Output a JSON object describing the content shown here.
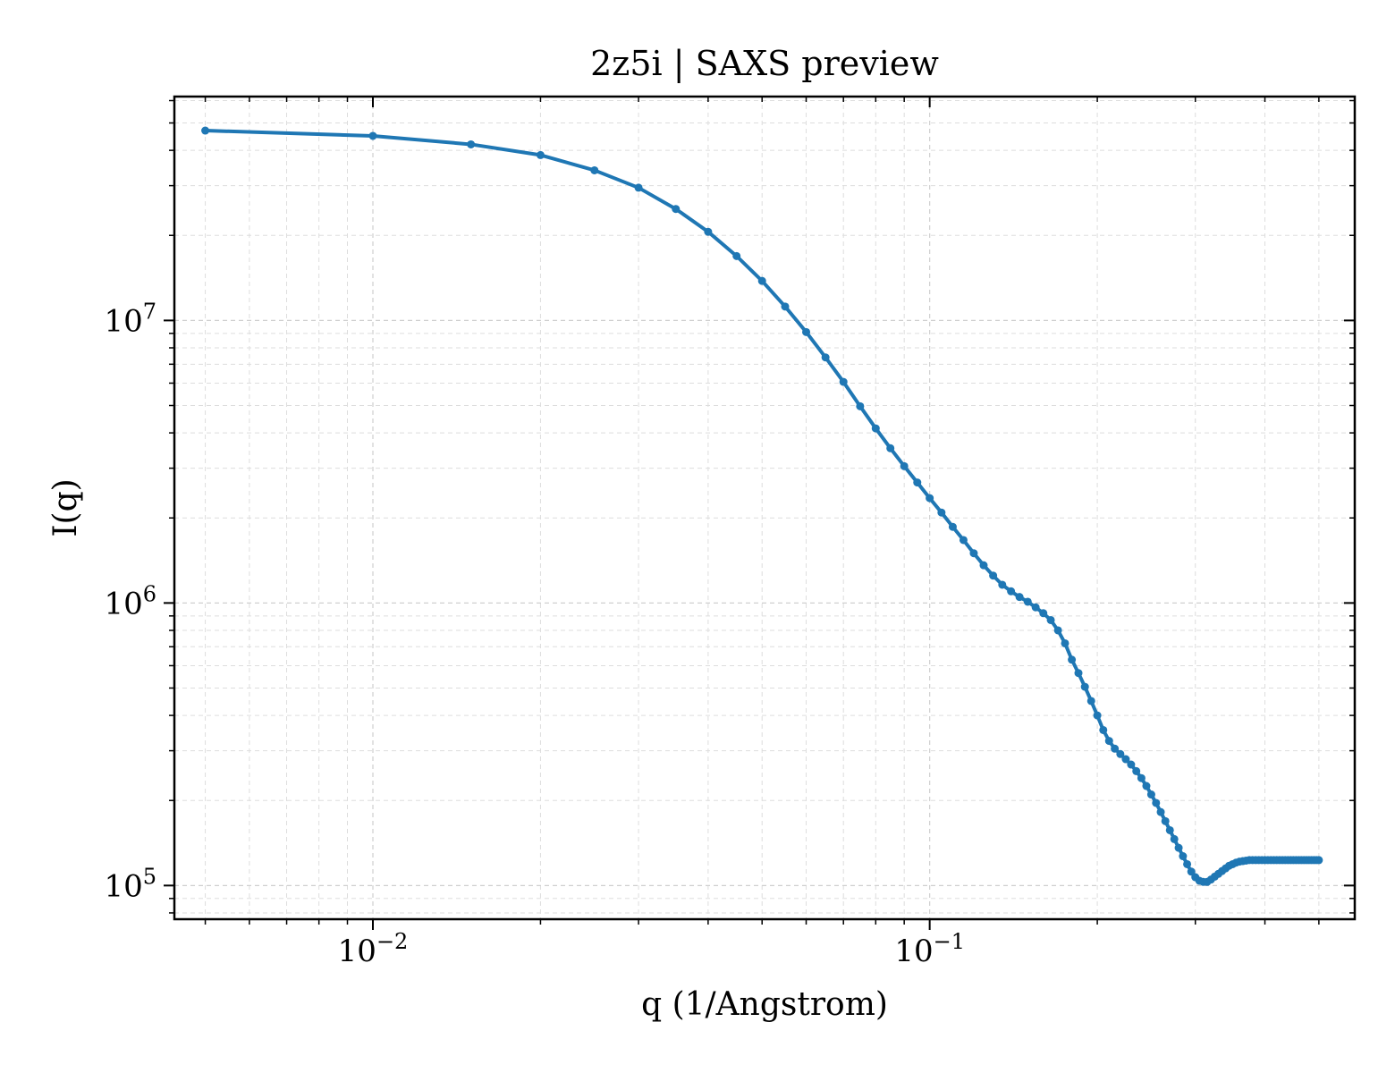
{
  "chart_data": {
    "type": "line",
    "title": "2z5i | SAXS preview",
    "xlabel": "q (1/Angstrom)",
    "ylabel": "I(q)",
    "xscale": "log",
    "yscale": "log",
    "xlim": [
      0.0044,
      0.58
    ],
    "ylim": [
      76000,
      62000000
    ],
    "grid": true,
    "legend": "none",
    "x_ticks": [
      {
        "value": 0.01,
        "base": "10",
        "exp": "−2"
      },
      {
        "value": 0.1,
        "base": "10",
        "exp": "−1"
      }
    ],
    "y_ticks": [
      {
        "value": 100000,
        "base": "10",
        "exp": "5"
      },
      {
        "value": 1000000,
        "base": "10",
        "exp": "6"
      },
      {
        "value": 10000000,
        "base": "10",
        "exp": "7"
      }
    ],
    "line_color": "#1f77b4",
    "series": [
      {
        "x": [
          0.005,
          0.01,
          0.015,
          0.02,
          0.025,
          0.03,
          0.035,
          0.04,
          0.045,
          0.05,
          0.055,
          0.06,
          0.065,
          0.07,
          0.075,
          0.08,
          0.085,
          0.09,
          0.095,
          0.1,
          0.105,
          0.11,
          0.115,
          0.12,
          0.125,
          0.13,
          0.135,
          0.14,
          0.145,
          0.15,
          0.155,
          0.16,
          0.165,
          0.17,
          0.175,
          0.18,
          0.185,
          0.19,
          0.195,
          0.2,
          0.205,
          0.21,
          0.215,
          0.22,
          0.225,
          0.23,
          0.235,
          0.24,
          0.245,
          0.25,
          0.255,
          0.26,
          0.265,
          0.27,
          0.275,
          0.28,
          0.285,
          0.29,
          0.295,
          0.3,
          0.305,
          0.31,
          0.315,
          0.32,
          0.325,
          0.33,
          0.335,
          0.34,
          0.345,
          0.35,
          0.355,
          0.36,
          0.365,
          0.37,
          0.375,
          0.38,
          0.385,
          0.39,
          0.395,
          0.4,
          0.405,
          0.41,
          0.415,
          0.42,
          0.425,
          0.43,
          0.435,
          0.44,
          0.445,
          0.45,
          0.455,
          0.46,
          0.465,
          0.47,
          0.475,
          0.48,
          0.485,
          0.49,
          0.495,
          0.5
        ],
        "y": [
          47000000,
          45000000,
          42000000,
          38500000,
          34000000,
          29500000,
          24800000,
          20600000,
          16900000,
          13800000,
          11200000,
          9100000,
          7400000,
          6060000,
          4970000,
          4150000,
          3530000,
          3050000,
          2670000,
          2350000,
          2090000,
          1860000,
          1670000,
          1500000,
          1360000,
          1250000,
          1160000,
          1100000,
          1050000,
          1010000,
          965000,
          920000,
          870000,
          800000,
          720000,
          630000,
          565000,
          505000,
          450000,
          400000,
          355000,
          325000,
          305000,
          292000,
          280000,
          268000,
          254000,
          240000,
          225000,
          210000,
          196000,
          182000,
          169000,
          157000,
          146000,
          136000,
          127000,
          119000,
          112000,
          107000,
          104000,
          103000,
          103000,
          105000,
          107500,
          110000,
          112500,
          115000,
          117500,
          119000,
          120500,
          121500,
          122000,
          122500,
          123000,
          123000,
          123000,
          123000,
          123000,
          123000,
          123000,
          123000,
          123000,
          123000,
          123000,
          123000,
          123000,
          123000,
          123000,
          123000,
          123000,
          123000,
          123000,
          123000,
          123000,
          123000,
          123000,
          123000,
          123000,
          123000
        ]
      }
    ]
  }
}
